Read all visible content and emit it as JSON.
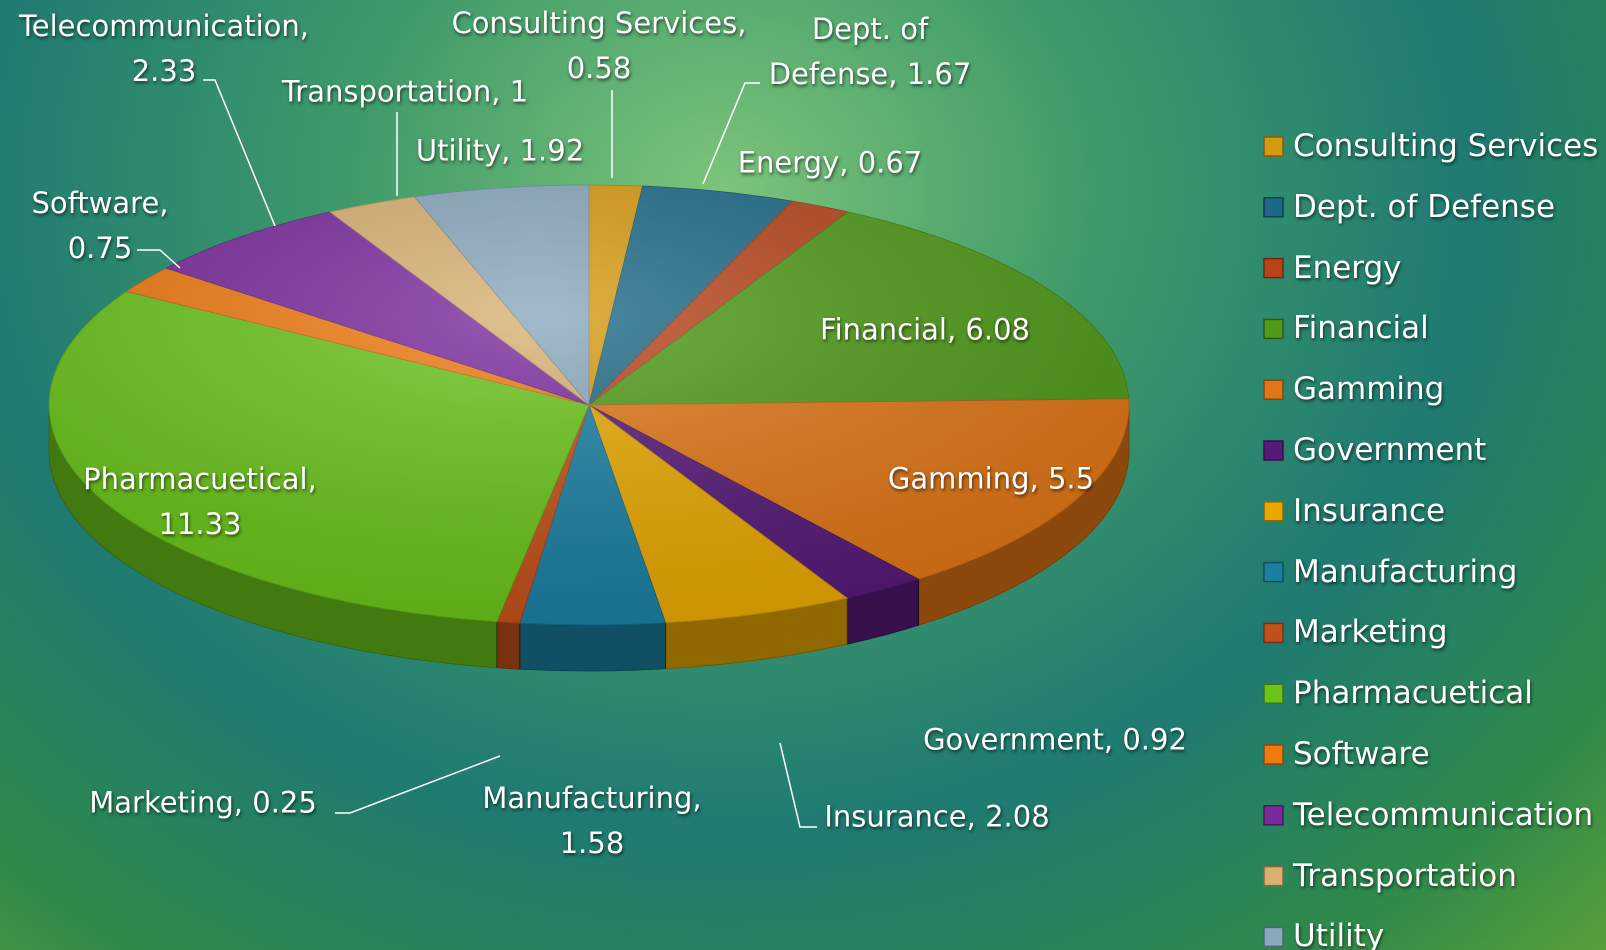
{
  "chart_data": {
    "type": "pie3d",
    "categories": [
      "Consulting Services",
      "Dept. of Defense",
      "Energy",
      "Financial",
      "Gamming",
      "Government",
      "Insurance",
      "Manufacturing",
      "Marketing",
      "Pharmacuetical",
      "Software",
      "Telecommunication",
      "Transportation",
      "Utility"
    ],
    "values": [
      0.58,
      1.67,
      0.67,
      6.08,
      5.5,
      0.92,
      2.08,
      1.58,
      0.25,
      11.33,
      0.75,
      2.33,
      1,
      1.92
    ],
    "value_labels": [
      "Consulting Services, 0.58",
      "Dept. of Defense, 1.67",
      "Energy, 0.67",
      "Financial, 6.08",
      "Gamming, 5.5",
      "Government, 0.92",
      "Insurance, 2.08",
      "Manufacturing, 1.58",
      "Marketing, 0.25",
      "Pharmacuetical, 11.33",
      "Software, 0.75",
      "Telecommunication, 2.33",
      "Transportation, 1",
      "Utility, 1.92"
    ],
    "colors": [
      "#d69a10",
      "#1d6a88",
      "#b8451a",
      "#4f9a18",
      "#e07616",
      "#561a78",
      "#e8a800",
      "#1a80a2",
      "#c2501a",
      "#6ac41a",
      "#f07a10",
      "#7a2a9c",
      "#d8b070",
      "#88a8bc"
    ],
    "legend": "right"
  }
}
